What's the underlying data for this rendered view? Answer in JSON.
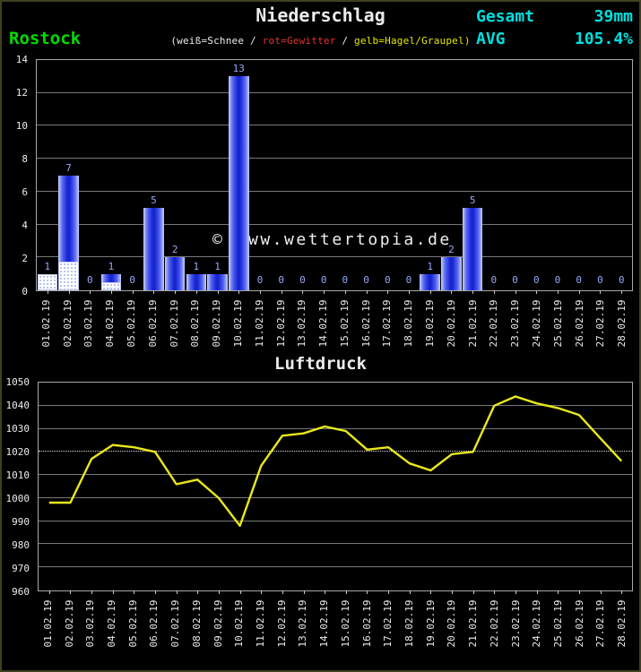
{
  "header": {
    "station": "Rostock",
    "title": "Niederschlag",
    "legend_parts": [
      {
        "text": "(weiß=Schnee",
        "color": "#ececec"
      },
      {
        "text": " / ",
        "color": "#ececec"
      },
      {
        "text": "rot=Gewitter",
        "color": "#e63232"
      },
      {
        "text": " / ",
        "color": "#ececec"
      },
      {
        "text": "gelb=Hagel/Graupel)",
        "color": "#e8e800"
      }
    ],
    "stats": [
      {
        "label": "Gesamt",
        "value": "39mm"
      },
      {
        "label": "AVG",
        "value": "105.4%"
      }
    ]
  },
  "watermark": "© www.wettertopia.de",
  "colors": {
    "station_green": "#00dd00",
    "stats_cyan": "#00e0e0",
    "bar_blue": "#2030e0",
    "snow_white": "#ffffff",
    "value_label_blue": "#98a8f8",
    "pressure_yellow": "#e8e81c",
    "grid_gray": "#787878"
  },
  "chart_data": [
    {
      "type": "bar",
      "title": "Niederschlag",
      "station": "Rostock",
      "unit": "mm",
      "total_label": "Gesamt",
      "total": "39mm",
      "avg_label": "AVG",
      "avg": "105.4%",
      "legend": "(weiß=Schnee / rot=Gewitter / gelb=Hagel/Graupel)",
      "ylim": [
        0,
        14
      ],
      "yticks": [
        0,
        2,
        4,
        6,
        8,
        10,
        12,
        14
      ],
      "categories": [
        "01.02.19",
        "02.02.19",
        "03.02.19",
        "04.02.19",
        "05.02.19",
        "06.02.19",
        "07.02.19",
        "08.02.19",
        "09.02.19",
        "10.02.19",
        "11.02.19",
        "12.02.19",
        "13.02.19",
        "14.02.19",
        "15.02.19",
        "16.02.19",
        "17.02.19",
        "18.02.19",
        "19.02.19",
        "20.02.19",
        "21.02.19",
        "22.02.19",
        "23.02.19",
        "24.02.19",
        "25.02.19",
        "26.02.19",
        "27.02.19",
        "28.02.19"
      ],
      "values": [
        1,
        7,
        0,
        1,
        0,
        5,
        2,
        1,
        1,
        13,
        0,
        0,
        0,
        0,
        0,
        0,
        0,
        0,
        1,
        2,
        5,
        0,
        0,
        0,
        0,
        0,
        0,
        0
      ],
      "snow_mm": [
        1,
        1.75,
        0,
        0.5,
        0,
        0,
        0,
        0,
        0,
        0,
        0,
        0,
        0,
        0,
        0,
        0,
        0,
        0,
        0,
        0,
        0,
        0,
        0,
        0,
        0,
        0,
        0,
        0
      ],
      "grid": true,
      "legend_position": "top"
    },
    {
      "type": "line",
      "title": "Luftdruck",
      "ylim": [
        960,
        1050
      ],
      "yticks": [
        960,
        970,
        980,
        990,
        1000,
        1010,
        1020,
        1030,
        1040,
        1050
      ],
      "highlight_gridline": 1020,
      "line_color": "#e8e81c",
      "categories": [
        "01.02.19",
        "02.02.19",
        "03.02.19",
        "04.02.19",
        "05.02.19",
        "06.02.19",
        "07.02.19",
        "08.02.19",
        "09.02.19",
        "10.02.19",
        "11.02.19",
        "12.02.19",
        "13.02.19",
        "14.02.19",
        "15.02.19",
        "16.02.19",
        "17.02.19",
        "18.02.19",
        "19.02.19",
        "20.02.19",
        "21.02.19",
        "22.02.19",
        "23.02.19",
        "24.02.19",
        "25.02.19",
        "26.02.19",
        "27.02.19",
        "28.02.19"
      ],
      "values": [
        998,
        998,
        1017,
        1023,
        1022,
        1020,
        1006,
        1008,
        1000,
        988,
        1014,
        1027,
        1028,
        1031,
        1029,
        1021,
        1022,
        1015,
        1012,
        1019,
        1020,
        1040,
        1044,
        1041,
        1039,
        1036,
        1026,
        1016
      ],
      "grid": true,
      "legend_position": "none"
    }
  ]
}
